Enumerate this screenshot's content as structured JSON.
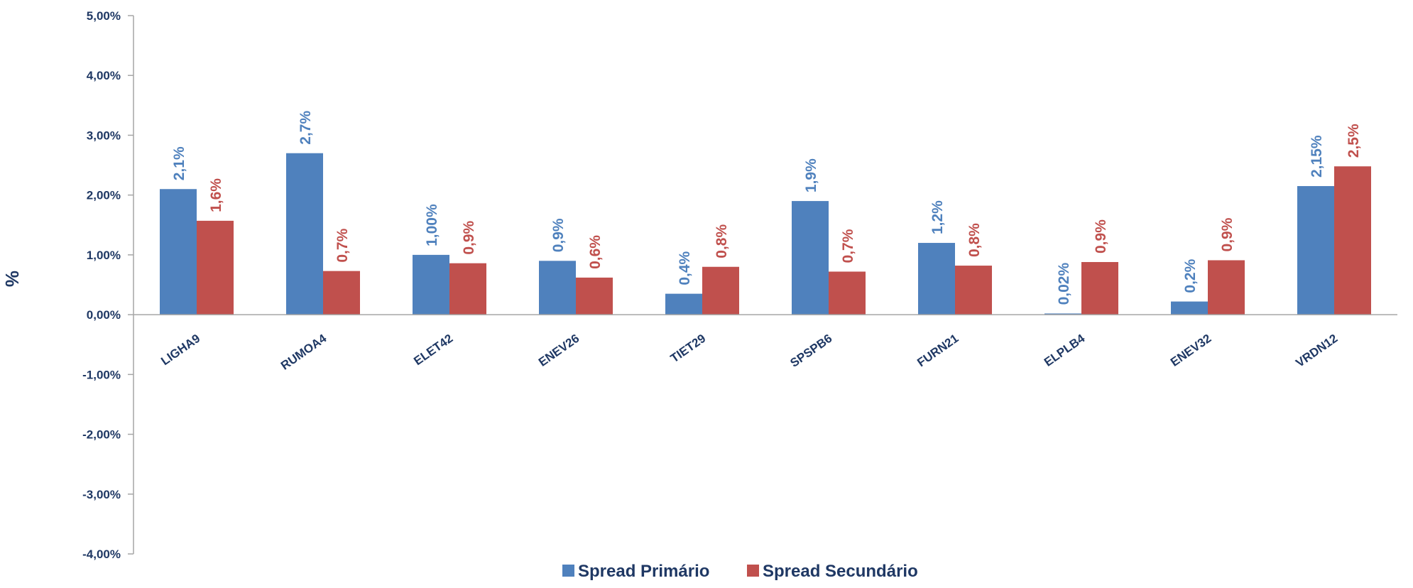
{
  "chart_data": {
    "type": "bar",
    "title": "",
    "xlabel": "",
    "ylabel": "%",
    "ylim": [
      -4,
      5
    ],
    "yticks": [
      5,
      4,
      3,
      2,
      1,
      0,
      -1,
      -2,
      -3,
      -4
    ],
    "ytick_labels": [
      "5,00%",
      "4,00%",
      "3,00%",
      "2,00%",
      "1,00%",
      "0,00%",
      "-1,00%",
      "-2,00%",
      "-3,00%",
      "-4,00%"
    ],
    "categories": [
      "LIGHA9",
      "RUMOA4",
      "ELET42",
      "ENEV26",
      "TIET29",
      "SPSPB6",
      "FURN21",
      "ELPLB4",
      "ENEV32",
      "VRDN12"
    ],
    "series": [
      {
        "name": "Spread Primário",
        "color": "#4F81BD",
        "values": [
          2.1,
          2.7,
          1.0,
          0.9,
          0.35,
          1.9,
          1.2,
          0.02,
          0.22,
          2.15
        ],
        "labels": [
          "2,1%",
          "2,7%",
          "1,00%",
          "0,9%",
          "0,4%",
          "1,9%",
          "1,2%",
          "0,02%",
          "0,2%",
          "2,15%"
        ]
      },
      {
        "name": "Spread Secundário",
        "color": "#C0504D",
        "values": [
          1.57,
          0.73,
          0.86,
          0.62,
          0.8,
          0.72,
          0.82,
          0.88,
          0.91,
          2.48
        ],
        "labels": [
          "1,6%",
          "0,7%",
          "0,9%",
          "0,6%",
          "0,8%",
          "0,7%",
          "0,8%",
          "0,9%",
          "0,9%",
          "2,5%"
        ]
      }
    ],
    "grid": false,
    "legend_position": "bottom-center"
  }
}
